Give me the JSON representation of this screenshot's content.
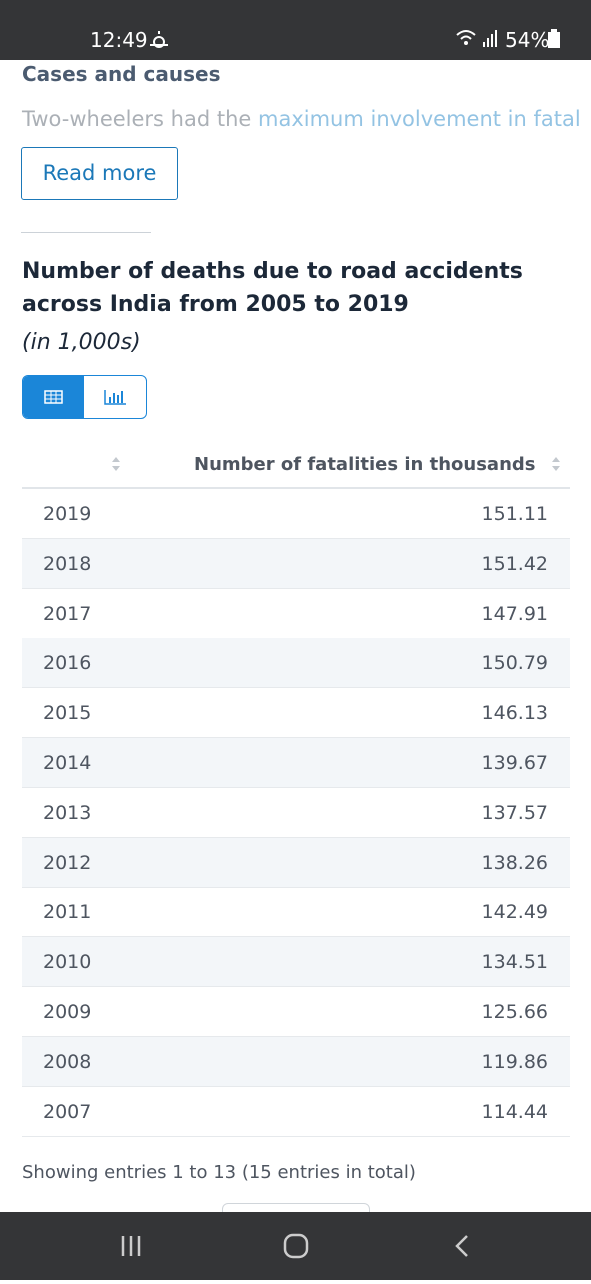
{
  "status_bar": {
    "time": "12:49",
    "battery": "54%"
  },
  "article": {
    "heading": "Cases and causes",
    "teaser_plain": "Two-wheelers had the ",
    "teaser_link": "maximum involvement in fatal",
    "button": "Read more"
  },
  "statistic": {
    "title": "Number of deaths due to road accidents across India from 2005 to 2019",
    "subtitle": "(in 1,000s)",
    "table": {
      "header": "Number of fatalities in thousands",
      "rows": [
        [
          "2019",
          "151.11"
        ],
        [
          "2018",
          "151.42"
        ],
        [
          "2017",
          "147.91"
        ],
        [
          "2016",
          "150.79"
        ],
        [
          "2015",
          "146.13"
        ],
        [
          "2014",
          "139.67"
        ],
        [
          "2013",
          "137.57"
        ],
        [
          "2012",
          "138.26"
        ],
        [
          "2011",
          "142.49"
        ],
        [
          "2010",
          "134.51"
        ],
        [
          "2009",
          "125.66"
        ],
        [
          "2008",
          "119.86"
        ],
        [
          "2007",
          "114.44"
        ]
      ]
    },
    "footer": "Showing entries 1 to 13 (15 entries in total)"
  }
}
